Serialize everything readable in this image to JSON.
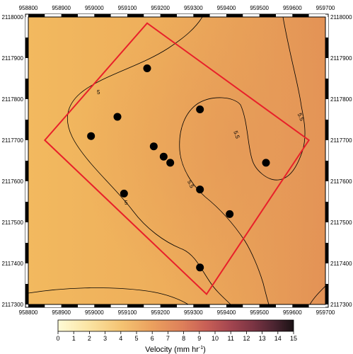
{
  "chart_data": {
    "type": "heatmap",
    "xlim": [
      958800,
      959700
    ],
    "ylim": [
      2117300,
      2118000
    ],
    "x_ticks": [
      "958800",
      "958900",
      "959000",
      "959100",
      "959200",
      "959300",
      "959400",
      "959500",
      "959600",
      "959700"
    ],
    "y_ticks": [
      "2117300",
      "2117400",
      "2117500",
      "2117600",
      "2117700",
      "2117800",
      "2117900",
      "2118000"
    ],
    "colorbar": {
      "ticks": [
        "0",
        "1",
        "2",
        "3",
        "4",
        "5",
        "6",
        "7",
        "8",
        "9",
        "10",
        "11",
        "12",
        "13",
        "14",
        "15"
      ],
      "label_main": "Velocity (mm hr",
      "label_sup": "-1",
      "label_close": ")",
      "range": [
        0,
        15
      ]
    },
    "contours": [
      {
        "level_label": "5"
      },
      {
        "level_label": "5.5"
      }
    ],
    "polygon": [
      {
        "x": 958850,
        "y": 2117700
      },
      {
        "x": 959160,
        "y": 2117985
      },
      {
        "x": 959650,
        "y": 2117700
      },
      {
        "x": 959340,
        "y": 2117325
      }
    ],
    "points": [
      {
        "x": 959160,
        "y": 2117875
      },
      {
        "x": 959070,
        "y": 2117757
      },
      {
        "x": 958990,
        "y": 2117710
      },
      {
        "x": 959320,
        "y": 2117775
      },
      {
        "x": 959180,
        "y": 2117685
      },
      {
        "x": 959210,
        "y": 2117660
      },
      {
        "x": 959230,
        "y": 2117645
      },
      {
        "x": 959520,
        "y": 2117645
      },
      {
        "x": 959090,
        "y": 2117570
      },
      {
        "x": 959320,
        "y": 2117580
      },
      {
        "x": 959410,
        "y": 2117520
      },
      {
        "x": 959320,
        "y": 2117390
      }
    ]
  },
  "colors": {
    "polygon": "#e8202a",
    "points": "#000000",
    "contour": "#000000",
    "field_light": "#f0b55c",
    "field_dark": "#e38f56"
  }
}
